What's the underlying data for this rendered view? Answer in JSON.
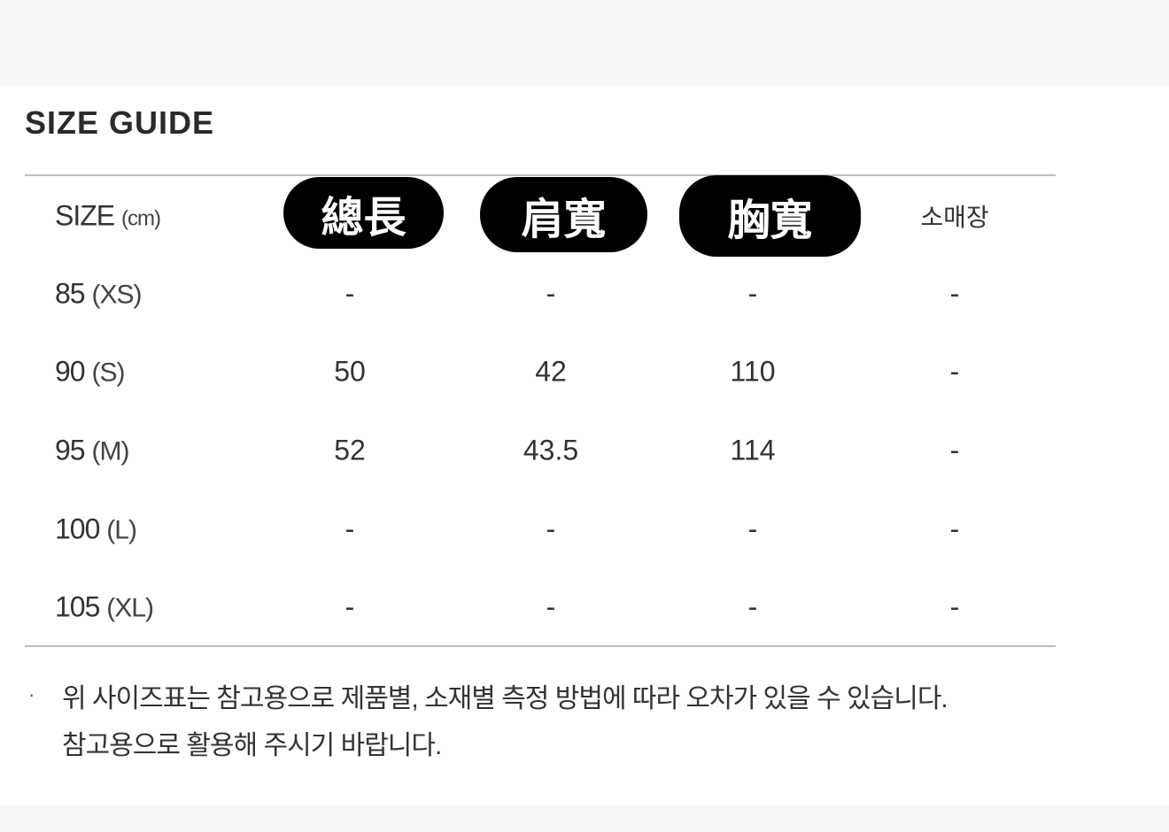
{
  "title": "SIZE GUIDE",
  "header": {
    "size_label": "SIZE",
    "size_unit": "(cm)",
    "columns": [
      "總長",
      "肩寬",
      "胸寬",
      "소매장"
    ]
  },
  "rows": [
    {
      "size": "85",
      "code": "(XS)",
      "values": [
        "-",
        "-",
        "-",
        "-"
      ]
    },
    {
      "size": "90",
      "code": "(S)",
      "values": [
        "50",
        "42",
        "110",
        "-"
      ]
    },
    {
      "size": "95",
      "code": "(M)",
      "values": [
        "52",
        "43.5",
        "114",
        "-"
      ]
    },
    {
      "size": "100",
      "code": "(L)",
      "values": [
        "-",
        "-",
        "-",
        "-"
      ]
    },
    {
      "size": "105",
      "code": "(XL)",
      "values": [
        "-",
        "-",
        "-",
        "-"
      ]
    }
  ],
  "notes": {
    "bullet": "·",
    "line1": "위 사이즈표는 참고용으로 제품별, 소재별 측정 방법에 따라 오차가 있을 수 있습니다.",
    "line2": "참고용으로 활용해 주시기 바랍니다."
  },
  "colors": {
    "pill_bg": "#000000",
    "rule": "#bdbdbd",
    "band": "#f7f7f7"
  }
}
